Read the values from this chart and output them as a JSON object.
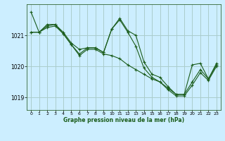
{
  "title": "Graphe pression niveau de la mer (hPa)",
  "bg_color": "#cceeff",
  "grid_color": "#aacccc",
  "line_color": "#1a5c1a",
  "marker": "+",
  "xlim": [
    -0.5,
    23.5
  ],
  "ylim": [
    1018.6,
    1022.0
  ],
  "yticks": [
    1019,
    1020,
    1021
  ],
  "xticks": [
    0,
    1,
    2,
    3,
    4,
    5,
    6,
    7,
    8,
    9,
    10,
    11,
    12,
    13,
    14,
    15,
    16,
    17,
    18,
    19,
    20,
    21,
    22,
    23
  ],
  "series": [
    [
      1021.75,
      1021.1,
      1021.35,
      1021.35,
      1021.1,
      1020.75,
      1020.55,
      1020.6,
      1020.6,
      1020.45,
      1021.2,
      1021.55,
      1021.15,
      1021.0,
      1020.15,
      1019.75,
      1019.65,
      1019.35,
      1019.1,
      1019.1,
      1020.05,
      1020.1,
      1019.6,
      1020.1
    ],
    [
      1021.1,
      1021.1,
      1021.3,
      1021.35,
      1021.05,
      1020.7,
      1020.4,
      1020.6,
      1020.6,
      1020.45,
      1021.2,
      1021.5,
      1021.1,
      1020.65,
      1019.95,
      1019.65,
      1019.5,
      1019.3,
      1019.1,
      1019.1,
      1019.5,
      1019.9,
      1019.6,
      1020.05
    ],
    [
      1021.1,
      1021.1,
      1021.25,
      1021.3,
      1021.05,
      1020.7,
      1020.35,
      1020.55,
      1020.55,
      1020.4,
      1020.35,
      1020.25,
      1020.05,
      1019.9,
      1019.75,
      1019.6,
      1019.5,
      1019.25,
      1019.05,
      1019.05,
      1019.4,
      1019.8,
      1019.55,
      1020.0
    ]
  ]
}
